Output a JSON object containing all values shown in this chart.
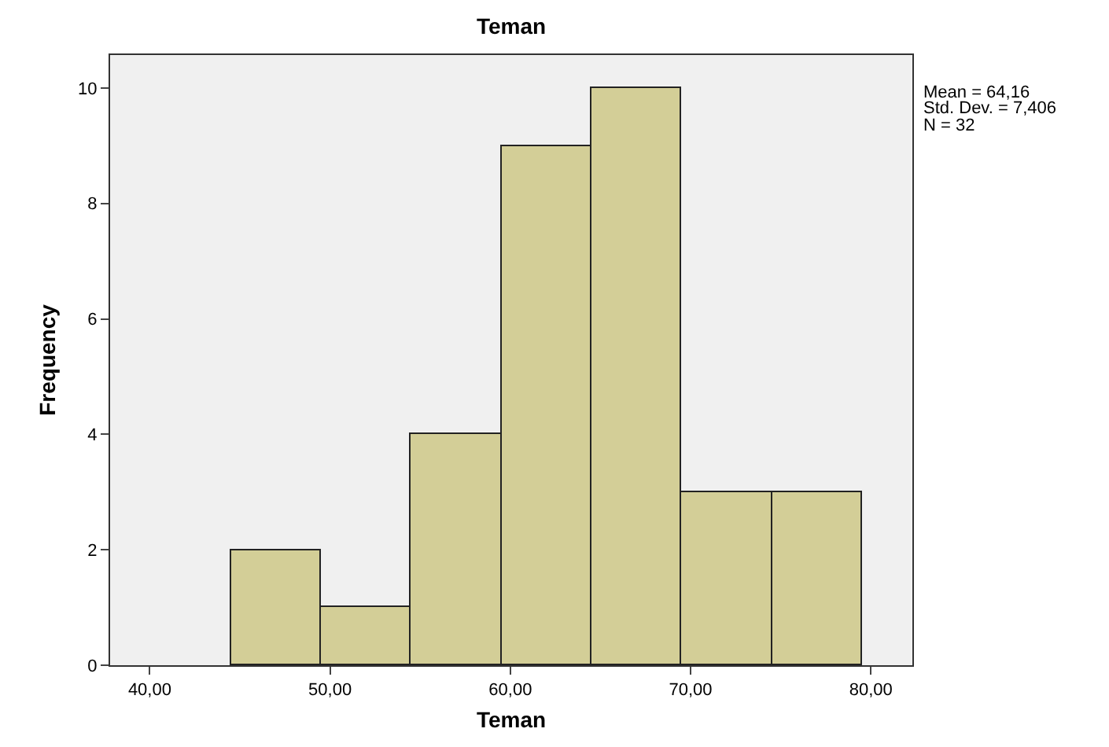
{
  "chart_data": {
    "type": "histogram",
    "title": "Teman",
    "xlabel": "Teman",
    "ylabel": "Frequency",
    "bins": [
      44.5,
      49.5,
      54.5,
      59.5,
      64.5,
      69.5,
      74.5,
      79.5
    ],
    "values": [
      2,
      1,
      4,
      9,
      10,
      3,
      3
    ],
    "color": "#d3ce97",
    "xlim": [
      37.8,
      82.3
    ],
    "xticks": [
      {
        "value": 40,
        "label": "40,00"
      },
      {
        "value": 50,
        "label": "50,00"
      },
      {
        "value": 60,
        "label": "60,00"
      },
      {
        "value": 70,
        "label": "70,00"
      },
      {
        "value": 80,
        "label": "80,00"
      }
    ],
    "ylim": [
      0,
      10.57
    ],
    "yticks": [
      0,
      2,
      4,
      6,
      8,
      10
    ],
    "annotations": [
      "Mean = 64,16",
      "Std. Dev. = 7,406",
      "N = 32"
    ]
  }
}
